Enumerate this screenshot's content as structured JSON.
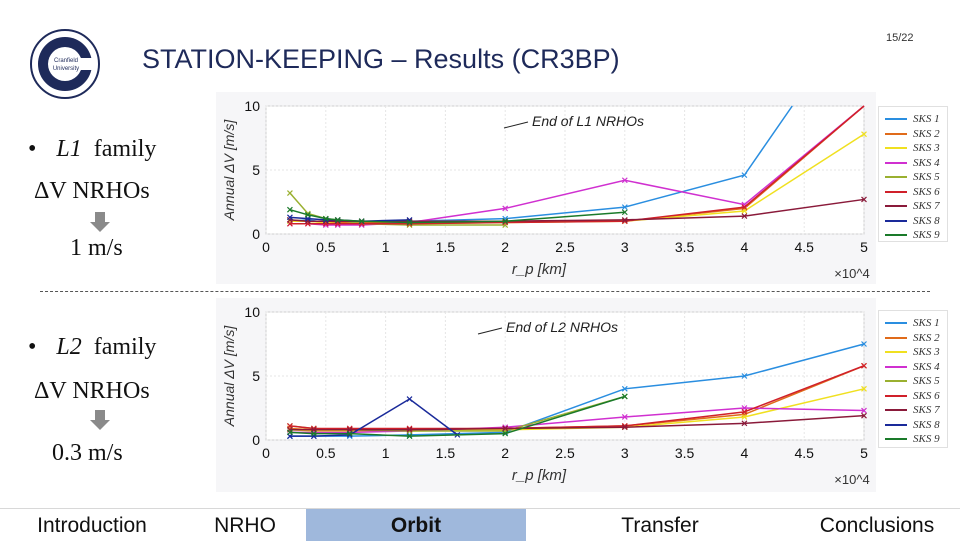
{
  "page": {
    "number": "15/22",
    "title": "STATION-KEEPING – Results (CR3BP)"
  },
  "logo": {
    "text_line1": "Cranfield",
    "text_line2": "University"
  },
  "bullets": {
    "l1": {
      "family_label": "family",
      "family_symbol": "L1",
      "dv": "ΔV NRHOs",
      "value": "1 m/s"
    },
    "l2": {
      "family_label": "family",
      "family_symbol": "L2",
      "dv": "ΔV NRHOs",
      "value": "0.3 m/s"
    }
  },
  "nav": {
    "items": [
      "Introduction",
      "NRHO",
      "Orbit",
      "Transfer",
      "Conclusions"
    ],
    "active": "Orbit",
    "active_color": "#9fb8dc"
  },
  "colors": {
    "SKS 1": "#2a8ee0",
    "SKS 2": "#e06b1a",
    "SKS 3": "#f0e020",
    "SKS 4": "#d030d0",
    "SKS 5": "#9ab030",
    "SKS 6": "#d0202a",
    "SKS 7": "#8a1a3a",
    "SKS 8": "#1a2a9a",
    "SKS 9": "#1a7a2a"
  },
  "chart_data": [
    {
      "type": "line",
      "annotation": "End of L1 NRHOs",
      "xlabel": "r_p [km]",
      "ylabel": "Annual ΔV [m/s]",
      "xlim": [
        0,
        50000
      ],
      "ylim": [
        0,
        10
      ],
      "x_ticks": [
        "0",
        "0.5",
        "1",
        "1.5",
        "2",
        "2.5",
        "3",
        "3.5",
        "4",
        "4.5",
        "5"
      ],
      "y_ticks": [
        "0",
        "5",
        "10"
      ],
      "x_exponent": "×10^4",
      "legend": "right",
      "series": [
        {
          "name": "SKS 1",
          "x": [
            2000,
            3500,
            5000,
            6000,
            8000,
            12000,
            20000,
            30000,
            40000,
            44000
          ],
          "y": [
            1.0,
            1.1,
            0.9,
            0.9,
            0.9,
            1.0,
            1.2,
            2.1,
            4.6,
            10
          ]
        },
        {
          "name": "SKS 2",
          "x": [
            2000,
            3500,
            5000,
            6000,
            8000,
            12000,
            20000,
            30000,
            40000,
            50000
          ],
          "y": [
            1.1,
            1.0,
            0.9,
            0.9,
            0.9,
            0.9,
            1.0,
            1.0,
            2.0,
            10
          ]
        },
        {
          "name": "SKS 3",
          "x": [
            2000,
            3500,
            5000,
            6000,
            8000,
            12000,
            20000,
            30000,
            40000,
            50000
          ],
          "y": [
            1.0,
            1.0,
            0.9,
            0.8,
            0.8,
            0.8,
            0.9,
            1.0,
            1.8,
            7.8
          ]
        },
        {
          "name": "SKS 4",
          "x": [
            2000,
            3500,
            5000,
            6000,
            8000,
            12000,
            20000,
            30000,
            40000,
            50000
          ],
          "y": [
            0.8,
            0.8,
            0.7,
            0.7,
            0.7,
            0.9,
            2.0,
            4.2,
            2.3,
            10
          ]
        },
        {
          "name": "SKS 5",
          "x": [
            2000,
            3500,
            5000,
            6000,
            8000,
            12000,
            20000
          ],
          "y": [
            3.2,
            1.6,
            1.2,
            1.1,
            0.8,
            0.7,
            0.7
          ]
        },
        {
          "name": "SKS 6",
          "x": [
            2000,
            3500,
            5000,
            6000,
            8000,
            12000,
            20000,
            30000,
            40000,
            50000
          ],
          "y": [
            0.8,
            0.8,
            0.8,
            0.8,
            0.8,
            0.8,
            0.9,
            1.0,
            2.1,
            10
          ]
        },
        {
          "name": "SKS 7",
          "x": [
            2000,
            3500,
            5000,
            6000,
            8000,
            12000,
            20000,
            30000,
            40000,
            50000
          ],
          "y": [
            1.1,
            1.0,
            1.0,
            1.0,
            1.0,
            1.0,
            1.0,
            1.1,
            1.4,
            2.7
          ]
        },
        {
          "name": "SKS 8",
          "x": [
            2000,
            3500,
            5000,
            6000,
            8000,
            12000
          ],
          "y": [
            1.3,
            1.2,
            1.1,
            1.1,
            1.0,
            1.1
          ]
        },
        {
          "name": "SKS 9",
          "x": [
            2000,
            3500,
            5000,
            6000,
            8000,
            12000,
            20000,
            30000
          ],
          "y": [
            1.9,
            1.5,
            1.2,
            1.1,
            1.0,
            0.9,
            1.0,
            1.7
          ]
        }
      ]
    },
    {
      "type": "line",
      "annotation": "End of L2 NRHOs",
      "xlabel": "r_p [km]",
      "ylabel": "Annual ΔV [m/s]",
      "xlim": [
        0,
        50000
      ],
      "ylim": [
        0,
        10
      ],
      "x_ticks": [
        "0",
        "0.5",
        "1",
        "1.5",
        "2",
        "2.5",
        "3",
        "3.5",
        "4",
        "4.5",
        "5"
      ],
      "y_ticks": [
        "0",
        "5",
        "10"
      ],
      "x_exponent": "×10^4",
      "legend": "right",
      "series": [
        {
          "name": "SKS 1",
          "x": [
            2000,
            4000,
            7000,
            12000,
            20000,
            30000,
            40000,
            50000
          ],
          "y": [
            0.3,
            0.3,
            0.3,
            0.4,
            0.6,
            4.0,
            5.0,
            7.5
          ]
        },
        {
          "name": "SKS 2",
          "x": [
            2000,
            4000,
            7000,
            12000,
            20000,
            30000,
            40000,
            50000
          ],
          "y": [
            0.9,
            0.8,
            0.8,
            0.8,
            0.9,
            1.1,
            2.0,
            5.8
          ]
        },
        {
          "name": "SKS 3",
          "x": [
            2000,
            4000,
            7000,
            12000,
            20000,
            30000,
            40000,
            50000
          ],
          "y": [
            0.8,
            0.7,
            0.7,
            0.7,
            0.8,
            1.0,
            1.8,
            4.0
          ]
        },
        {
          "name": "SKS 4",
          "x": [
            2000,
            4000,
            7000,
            12000,
            20000,
            30000,
            40000,
            50000
          ],
          "y": [
            0.6,
            0.6,
            0.6,
            0.7,
            1.0,
            1.8,
            2.5,
            2.3
          ]
        },
        {
          "name": "SKS 5",
          "x": [
            2000,
            4000,
            7000,
            12000,
            20000,
            30000
          ],
          "y": [
            1.1,
            0.9,
            0.8,
            0.7,
            0.7,
            3.4
          ]
        },
        {
          "name": "SKS 6",
          "x": [
            2000,
            4000,
            7000,
            12000,
            20000,
            30000,
            40000,
            50000
          ],
          "y": [
            1.1,
            0.9,
            0.9,
            0.9,
            0.9,
            1.1,
            2.2,
            5.8
          ]
        },
        {
          "name": "SKS 7",
          "x": [
            2000,
            4000,
            7000,
            12000,
            20000,
            30000,
            40000,
            50000
          ],
          "y": [
            0.8,
            0.8,
            0.8,
            0.8,
            0.9,
            1.0,
            1.3,
            1.9
          ]
        },
        {
          "name": "SKS 8",
          "x": [
            2000,
            4000,
            7000,
            12000,
            16000
          ],
          "y": [
            0.3,
            0.3,
            0.4,
            3.2,
            0.4
          ]
        },
        {
          "name": "SKS 9",
          "x": [
            2000,
            4000,
            7000,
            12000,
            20000,
            30000
          ],
          "y": [
            0.6,
            0.5,
            0.5,
            0.3,
            0.5,
            3.4
          ]
        }
      ]
    }
  ]
}
